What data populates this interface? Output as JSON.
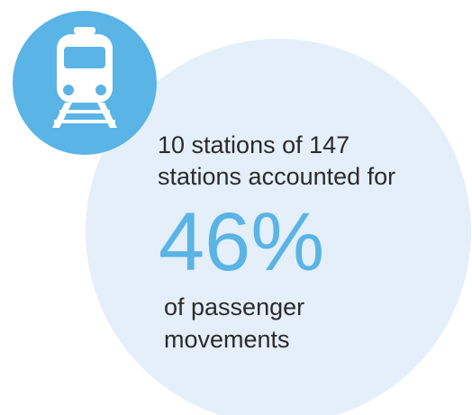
{
  "statement": {
    "lines": [
      "10 stations of 147",
      "stations accounted for"
    ],
    "figure": "46%",
    "closing": [
      "of passenger",
      "movements"
    ]
  }
}
